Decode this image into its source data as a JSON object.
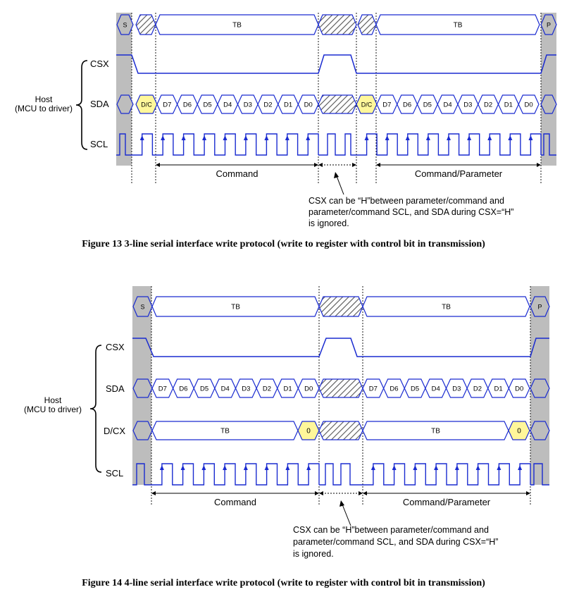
{
  "figure13": {
    "caption": "Figure 13 3-line serial interface write protocol (write to register with control bit in transmission)",
    "host_label_line1": "Host",
    "host_label_line2": "(MCU to driver)",
    "signals": [
      "CSX",
      "SDA",
      "SCL"
    ],
    "start_label": "S",
    "stop_label": "P",
    "tb_label": "TB",
    "control_bit_label": "D/C",
    "data_bits": [
      "D7",
      "D6",
      "D5",
      "D4",
      "D3",
      "D2",
      "D1",
      "D0"
    ],
    "span_labels": [
      "Command",
      "Command/Parameter"
    ],
    "note": [
      "CSX can be “H”between parameter/command and",
      "parameter/command SCL, and SDA during CSX=“H”",
      "is ignored."
    ]
  },
  "figure14": {
    "caption": "Figure 14 4-line serial interface write protocol (write to register with control bit in transmission)",
    "host_label_line1": "Host",
    "host_label_line2": "(MCU to driver)",
    "signals": [
      "CSX",
      "SDA",
      "D/CX",
      "SCL"
    ],
    "start_label": "S",
    "stop_label": "P",
    "tb_label": "TB",
    "dcx_value": "0",
    "data_bits": [
      "D7",
      "D6",
      "D5",
      "D4",
      "D3",
      "D2",
      "D1",
      "D0"
    ],
    "span_labels": [
      "Command",
      "Command/Parameter"
    ],
    "note": [
      "CSX can be “H”between parameter/command and",
      "parameter/command SCL, and SDA during CSX=“H”",
      "is ignored."
    ]
  },
  "colors": {
    "signal": "#1a2bd0",
    "idle_band": "#bdbdbd",
    "highlight": "#fff79a",
    "hatch": "#555555"
  }
}
